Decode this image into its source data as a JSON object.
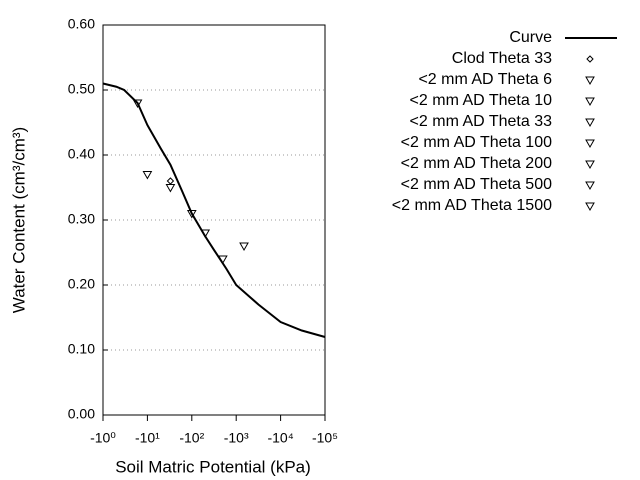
{
  "chart_data": {
    "type": "line",
    "xlabel": "Soil Matric Potential (kPa)",
    "ylabel": "Water Content (cm³/cm³)",
    "xscale": "log",
    "xlim": [
      1,
      100000
    ],
    "xticks": [
      {
        "value": 1,
        "label": "-10⁰"
      },
      {
        "value": 10,
        "label": "-10¹"
      },
      {
        "value": 100,
        "label": "-10²"
      },
      {
        "value": 1000,
        "label": "-10³"
      },
      {
        "value": 10000,
        "label": "-10⁴"
      },
      {
        "value": 100000,
        "label": "-10⁵"
      }
    ],
    "ylim": [
      0,
      0.6
    ],
    "yticks": [
      {
        "value": 0,
        "label": "0.00"
      },
      {
        "value": 0.1,
        "label": "0.10"
      },
      {
        "value": 0.2,
        "label": "0.20"
      },
      {
        "value": 0.3,
        "label": "0.30"
      },
      {
        "value": 0.4,
        "label": "0.40"
      },
      {
        "value": 0.5,
        "label": "0.50"
      },
      {
        "value": 0.6,
        "label": "0.60"
      }
    ],
    "grid": true,
    "legend": "right",
    "series": [
      {
        "name": "Curve",
        "color": "#000000",
        "marker": "line",
        "x": [
          1,
          2,
          3,
          6,
          10,
          20,
          33,
          60,
          100,
          200,
          316,
          600,
          1000,
          2000,
          3162,
          6000,
          10000,
          30000,
          100000
        ],
        "values": [
          0.51,
          0.505,
          0.5,
          0.48,
          0.446,
          0.41,
          0.385,
          0.345,
          0.31,
          0.275,
          0.254,
          0.225,
          0.2,
          0.182,
          0.17,
          0.155,
          0.143,
          0.13,
          0.12
        ]
      },
      {
        "name": "Clod Theta 33",
        "color": "#000000",
        "marker": "diamond",
        "x": [
          33
        ],
        "values": [
          0.36
        ]
      },
      {
        "name": "<2 mm AD Theta 6",
        "color": "#000000",
        "marker": "triangle",
        "x": [
          6
        ],
        "values": [
          0.48
        ]
      },
      {
        "name": "<2 mm AD Theta 10",
        "color": "#000000",
        "marker": "triangle",
        "x": [
          10
        ],
        "values": [
          0.37
        ]
      },
      {
        "name": "<2 mm AD Theta 33",
        "color": "#000000",
        "marker": "triangle",
        "x": [
          33
        ],
        "values": [
          0.35
        ]
      },
      {
        "name": "<2 mm AD Theta 100",
        "color": "#000000",
        "marker": "triangle",
        "x": [
          100
        ],
        "values": [
          0.31
        ]
      },
      {
        "name": "<2 mm AD Theta 200",
        "color": "#000000",
        "marker": "triangle",
        "x": [
          200
        ],
        "values": [
          0.28
        ]
      },
      {
        "name": "<2 mm AD Theta 500",
        "color": "#000000",
        "marker": "triangle",
        "x": [
          500
        ],
        "values": [
          0.24
        ]
      },
      {
        "name": "<2 mm AD Theta 1500",
        "color": "#000000",
        "marker": "triangle",
        "x": [
          1500
        ],
        "values": [
          0.26
        ]
      }
    ]
  }
}
